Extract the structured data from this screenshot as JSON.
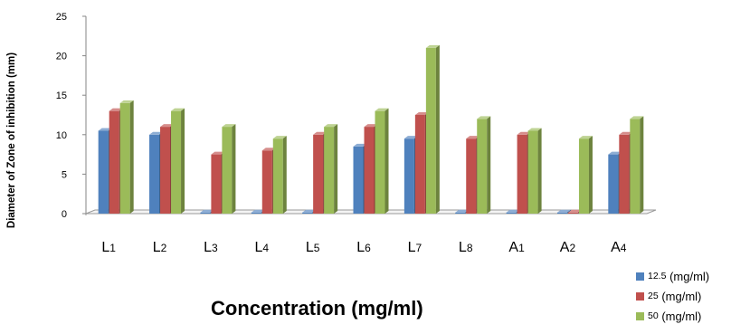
{
  "chart_data": {
    "type": "bar",
    "title": "",
    "xlabel": "Concentration (mg/ml)",
    "ylabel": "Diameter of Zone of inhibition (mm)",
    "ylim": [
      0,
      25
    ],
    "yticks": [
      "0",
      "5",
      "10",
      "15",
      "20",
      "25"
    ],
    "categories": [
      {
        "main": "L",
        "sub": "1"
      },
      {
        "main": "L",
        "sub": "2"
      },
      {
        "main": "L",
        "sub": "3"
      },
      {
        "main": "L",
        "sub": "4"
      },
      {
        "main": "L",
        "sub": "5"
      },
      {
        "main": "L",
        "sub": "6"
      },
      {
        "main": "L",
        "sub": "7"
      },
      {
        "main": "L",
        "sub": "8"
      },
      {
        "main": "A",
        "sub": "1"
      },
      {
        "main": "A",
        "sub": "2"
      },
      {
        "main": "A",
        "sub": "4"
      }
    ],
    "series": [
      {
        "name_num": "12.5",
        "name_unit": "(mg/ml)",
        "color": "#4f81bd",
        "values": [
          10.5,
          10,
          0,
          0,
          0,
          8.5,
          9.5,
          0,
          0,
          0,
          7.5
        ]
      },
      {
        "name_num": "25",
        "name_unit": "(mg/ml)",
        "color": "#c0504d",
        "values": [
          13,
          11,
          7.5,
          8,
          10,
          11,
          12.5,
          9.5,
          10,
          0,
          10
        ]
      },
      {
        "name_num": "50",
        "name_unit": "(mg/ml)",
        "color": "#9bbb59",
        "values": [
          14,
          13,
          11,
          9.5,
          11,
          13,
          21,
          12,
          10.5,
          9.5,
          12
        ]
      }
    ],
    "legend_position": "bottom-right",
    "grid": false
  }
}
